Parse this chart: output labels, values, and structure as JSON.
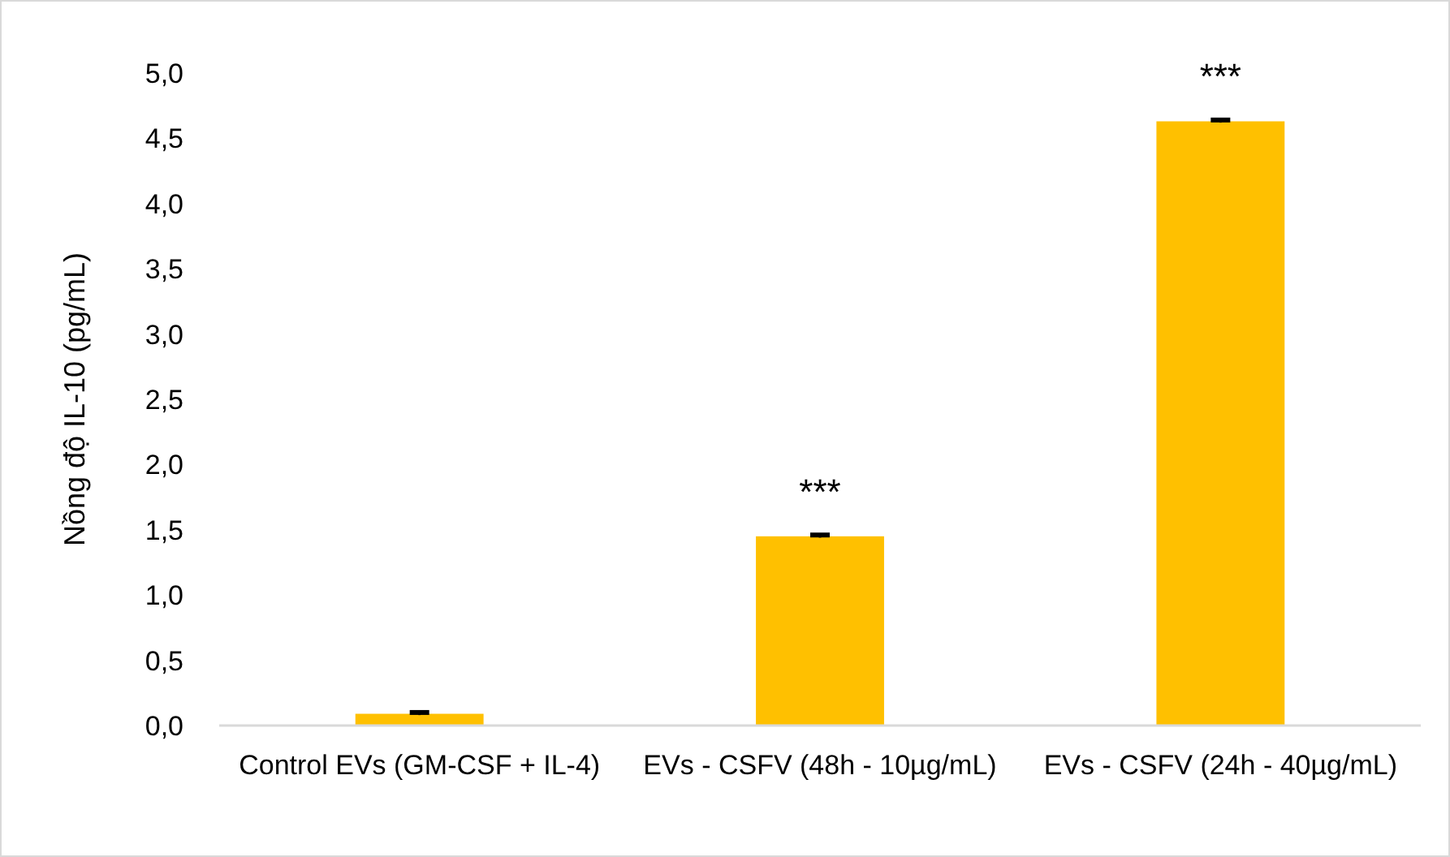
{
  "chart_data": {
    "type": "bar",
    "ylabel": "Nồng độ IL-10 (pg/mL)",
    "categories": [
      "Control EVs (GM-CSF + IL-4)",
      "EVs - CSFV (48h - 10µg/mL)",
      "EVs - CSFV (24h - 40µg/mL)"
    ],
    "values": [
      0.09,
      1.45,
      4.63
    ],
    "errors": [
      0.01,
      0.01,
      0.01
    ],
    "color": "#ffc000",
    "ylim": [
      0,
      5
    ],
    "yticks": [
      {
        "value": 0,
        "label": "0,0"
      },
      {
        "value": 0.5,
        "label": "0,5"
      },
      {
        "value": 1,
        "label": "1,0"
      },
      {
        "value": 1.5,
        "label": "1,5"
      },
      {
        "value": 2,
        "label": "2,0"
      },
      {
        "value": 2.5,
        "label": "2,5"
      },
      {
        "value": 3,
        "label": "3,0"
      },
      {
        "value": 3.5,
        "label": "3,5"
      },
      {
        "value": 4,
        "label": "4,0"
      },
      {
        "value": 4.5,
        "label": "4,5"
      },
      {
        "value": 5,
        "label": "5,0"
      }
    ],
    "grid": false,
    "annotations": [
      {
        "text": "***",
        "x": "EVs - CSFV (48h - 10µg/mL)",
        "y": 1.45
      },
      {
        "text": "***",
        "x": "EVs - CSFV (24h - 40µg/mL)",
        "y": 4.63
      }
    ]
  }
}
